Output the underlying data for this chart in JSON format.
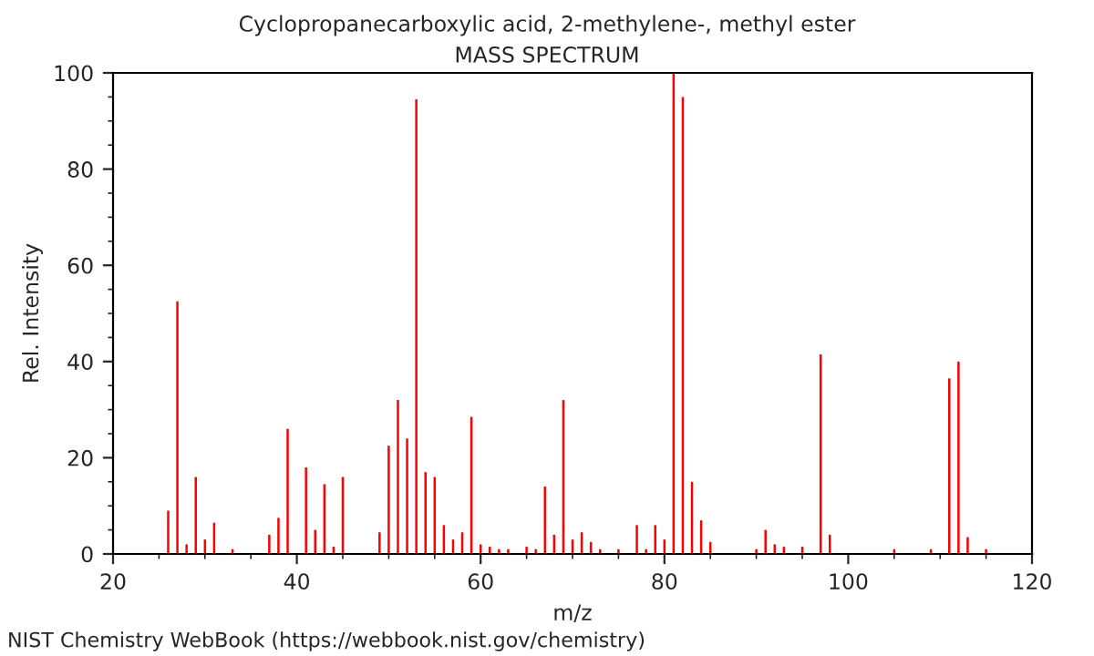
{
  "chart_data": {
    "type": "bar",
    "title": "Cyclopropanecarboxylic acid, 2-methylene-, methyl ester",
    "subtitle": "MASS SPECTRUM",
    "xlabel": "m/z",
    "ylabel": "Rel. Intensity",
    "x": [
      26,
      27,
      28,
      29,
      30,
      31,
      33,
      37,
      38,
      39,
      41,
      42,
      43,
      44,
      45,
      49,
      50,
      51,
      52,
      53,
      54,
      55,
      56,
      57,
      58,
      59,
      60,
      61,
      62,
      63,
      65,
      66,
      67,
      68,
      69,
      70,
      71,
      72,
      73,
      75,
      77,
      78,
      79,
      80,
      81,
      82,
      83,
      84,
      85,
      90,
      91,
      92,
      93,
      95,
      97,
      98,
      105,
      109,
      111,
      112,
      113,
      115
    ],
    "values": [
      9,
      52.5,
      2,
      16,
      3,
      6.5,
      1,
      4,
      7.5,
      26,
      18,
      5,
      14.5,
      1.5,
      16,
      4.5,
      22.5,
      32,
      24,
      94.5,
      17,
      16,
      6,
      3,
      4.5,
      28.5,
      2,
      1.5,
      1,
      1,
      1.5,
      1,
      14,
      4,
      32,
      3,
      4.5,
      2.5,
      1,
      1,
      6,
      1,
      6,
      3,
      100,
      95,
      15,
      7,
      2.5,
      1,
      5,
      2,
      1.5,
      1.5,
      41.5,
      4,
      1,
      1,
      36.5,
      40,
      3.5,
      1
    ],
    "color": "#ff0000",
    "xlim": [
      20,
      120
    ],
    "xticks": [
      20,
      {
        "value": 25,
        "label": null
      },
      40,
      {
        "value": 35,
        "label": null
      },
      {
        "value": 30,
        "label": null
      },
      {
        "value": 45,
        "label": null
      },
      60,
      {
        "value": 50,
        "label": null
      },
      {
        "value": 55,
        "label": null
      },
      {
        "value": 65,
        "label": null
      },
      80,
      {
        "value": 70,
        "label": null
      },
      {
        "value": 75,
        "label": null
      },
      {
        "value": 85,
        "label": null
      },
      100,
      {
        "value": 90,
        "label": null
      },
      {
        "value": 95,
        "label": null
      },
      {
        "value": 105,
        "label": null
      },
      120,
      {
        "value": 110,
        "label": null
      },
      {
        "value": 115,
        "label": null
      }
    ],
    "ylim": [
      0,
      100
    ],
    "yticks": [
      0,
      20,
      40,
      60,
      80,
      100,
      {
        "value": 5,
        "label": null
      },
      {
        "value": 10,
        "label": null
      },
      {
        "value": 15,
        "label": null
      },
      {
        "value": 25,
        "label": null
      },
      {
        "value": 30,
        "label": null
      },
      {
        "value": 35,
        "label": null
      },
      {
        "value": 45,
        "label": null
      },
      {
        "value": 50,
        "label": null
      },
      {
        "value": 55,
        "label": null
      },
      {
        "value": 65,
        "label": null
      },
      {
        "value": 70,
        "label": null
      },
      {
        "value": 75,
        "label": null
      },
      {
        "value": 85,
        "label": null
      },
      {
        "value": 90,
        "label": null
      },
      {
        "value": 95,
        "label": null
      }
    ],
    "grid": false,
    "annotations": [
      "NIST Chemistry WebBook (https://webbook.nist.gov/chemistry)"
    ]
  }
}
